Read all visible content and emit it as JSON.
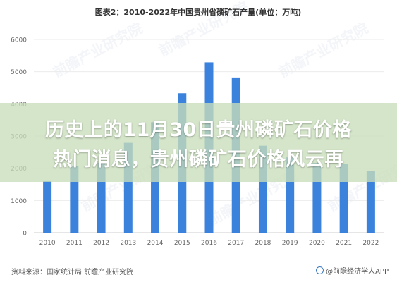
{
  "chart_data": {
    "type": "bar",
    "title": "图表2：2010-2022年中国贵州省磷矿石产量(单位：万吨)",
    "categories": [
      "2010",
      "2011",
      "2012",
      "2013",
      "2014",
      "2015",
      "2016",
      "2017",
      "2018",
      "2019",
      "2020",
      "2021",
      "2022"
    ],
    "values": [
      1600,
      2060,
      2170,
      2790,
      3430,
      4330,
      5290,
      4820,
      2700,
      2340,
      2170,
      2140,
      1910
    ],
    "ylim": [
      0,
      6000
    ],
    "yticks": [
      "0",
      "1000",
      "2000",
      "3000",
      "4000",
      "5000",
      "6000"
    ],
    "grid": true,
    "bar_color": "#3b82dc"
  },
  "overlay": {
    "line1": "历史上的11月30日贵州磷矿石价格",
    "line2": "热门消息，贵州磷矿石价格风云再"
  },
  "footer": {
    "source": "资料来源：国家统计局 前瞻产业研究院",
    "logo_text": "@前瞻经济学人APP"
  },
  "watermark": "前瞻产业研究院"
}
